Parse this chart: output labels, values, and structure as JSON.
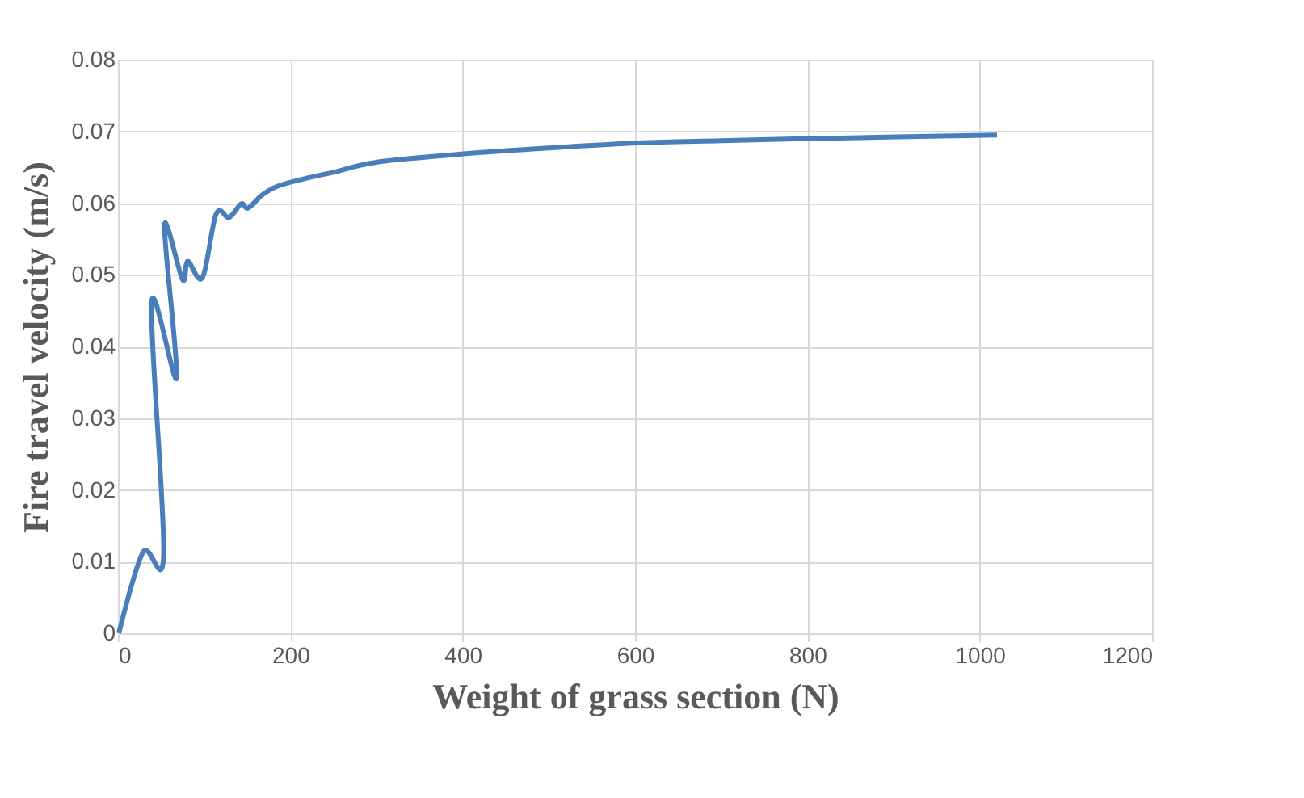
{
  "chart_data": {
    "type": "line",
    "xlabel": "Weight of grass section (N)",
    "ylabel": "Fire travel velocity (m/s)",
    "x": [
      1,
      29,
      53,
      39,
      68,
      54,
      75,
      81,
      98,
      114,
      129,
      143,
      151,
      167,
      186,
      223,
      250,
      300,
      404,
      500,
      604,
      700,
      804,
      1020
    ],
    "series": [
      {
        "color": "#4a7ebb",
        "values": [
          0,
          0.0113,
          0.011,
          0.0461,
          0.0356,
          0.0569,
          0.0493,
          0.0519,
          0.0496,
          0.0585,
          0.058,
          0.0599,
          0.0593,
          0.0611,
          0.0624,
          0.0636,
          0.0643,
          0.0657,
          0.0669,
          0.0677,
          0.0684,
          0.0687,
          0.069,
          0.0695
        ]
      }
    ],
    "xlim": [
      0,
      1200
    ],
    "xticks": [
      0,
      200,
      400,
      600,
      800,
      1000,
      1200
    ],
    "ylim": [
      0,
      0.08
    ],
    "yticks": [
      0,
      0.01,
      0.02,
      0.03,
      0.04,
      0.05,
      0.06,
      0.07,
      0.08
    ],
    "grid": true,
    "legend": false,
    "marker": "none",
    "line_style": "solid"
  }
}
